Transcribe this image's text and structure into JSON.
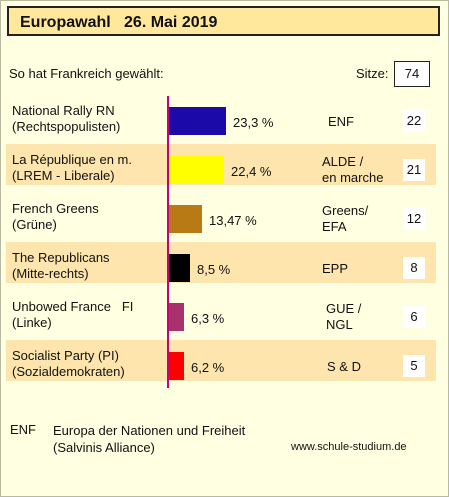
{
  "header": {
    "title": "Europawahl   26. Mai 2019"
  },
  "subtitle": "So hat Frankreich gewählt:",
  "seats_label": "Sitze:",
  "seats_total": "74",
  "chart_data": {
    "type": "bar",
    "orientation": "horizontal",
    "title": "Europawahl   26. Mai 2019",
    "categories": [
      "National Rally RN\n(Rechtspopulisten)",
      "La République en m.\n(LREM - Liberale)",
      "French Greens\n(Grüne)",
      "The Republicans\n(Mitte-rechts)",
      "Unbowed France   FI\n(Linke)",
      "Socialist Party (PI)\n(Sozialdemokraten)"
    ],
    "values": [
      23.3,
      22.4,
      13.47,
      8.5,
      6.3,
      6.2
    ],
    "value_labels": [
      "23,3 %",
      "22,4 %",
      "13,47 %",
      "8,5 %",
      "6,3 %",
      "6,2 %"
    ],
    "colors": [
      "#1c0aa8",
      "#ffff00",
      "#b87a14",
      "#000000",
      "#a8326e",
      "#ff0000"
    ],
    "groups": [
      "ENF",
      "ALDE /\nen marche",
      "Greens/\nEFA",
      "EPP",
      "GUE /\nNGL",
      "S & D"
    ],
    "seats": [
      "22",
      "21",
      "12",
      "8",
      "6",
      "5"
    ]
  },
  "footnote": {
    "abbr": "ENF",
    "desc": "Europa der Nationen und Freiheit\n(Salvinis Alliance)"
  },
  "source": "www.schule-studium.de",
  "colors": {
    "background": "#ffffe1",
    "title_bg": "#ffe79c",
    "stripe": "#fde5ad",
    "axis": "#c8007a"
  }
}
